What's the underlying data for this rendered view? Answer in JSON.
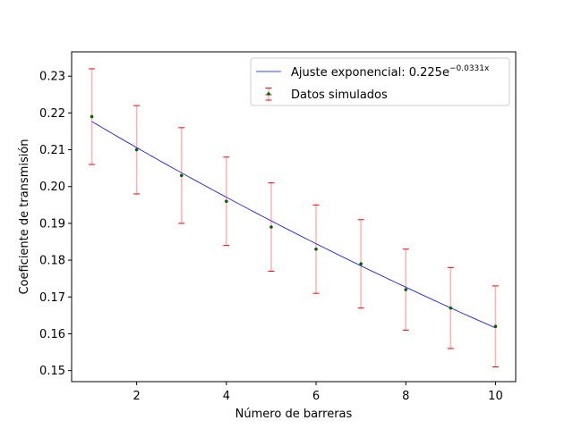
{
  "chart_data": {
    "type": "scatter",
    "xlabel": "Número de barreras",
    "ylabel": "Coeficiente de transmisión",
    "xlim": [
      0.55,
      10.45
    ],
    "ylim": [
      0.147,
      0.2366
    ],
    "xticks": [
      2,
      4,
      6,
      8,
      10
    ],
    "xtick_labels": [
      "2",
      "4",
      "6",
      "8",
      "10"
    ],
    "yticks": [
      0.15,
      0.16,
      0.17,
      0.18,
      0.19,
      0.2,
      0.21,
      0.22,
      0.23
    ],
    "ytick_labels": [
      "0.15",
      "0.16",
      "0.17",
      "0.18",
      "0.19",
      "0.20",
      "0.21",
      "0.22",
      "0.23"
    ],
    "grid": false,
    "legend_position": "upper right",
    "series": [
      {
        "name": "Datos simulados",
        "kind": "scatter-with-errorbars",
        "color": "#006400",
        "errorbar_color": "#ff0000",
        "x": [
          1,
          2,
          3,
          4,
          5,
          6,
          7,
          8,
          9,
          10
        ],
        "y": [
          0.219,
          0.21,
          0.203,
          0.196,
          0.189,
          0.183,
          0.179,
          0.172,
          0.167,
          0.162
        ],
        "yerr": [
          0.013,
          0.012,
          0.013,
          0.012,
          0.012,
          0.012,
          0.012,
          0.011,
          0.011,
          0.011
        ]
      },
      {
        "name_prefix": "Ajuste exponencial: 0.225e",
        "name_exponent": "−0.0331x",
        "kind": "fit-line",
        "color": "#0000ff",
        "amplitude": 0.225,
        "rate": 0.0331,
        "x_range": [
          1,
          10
        ]
      }
    ]
  }
}
